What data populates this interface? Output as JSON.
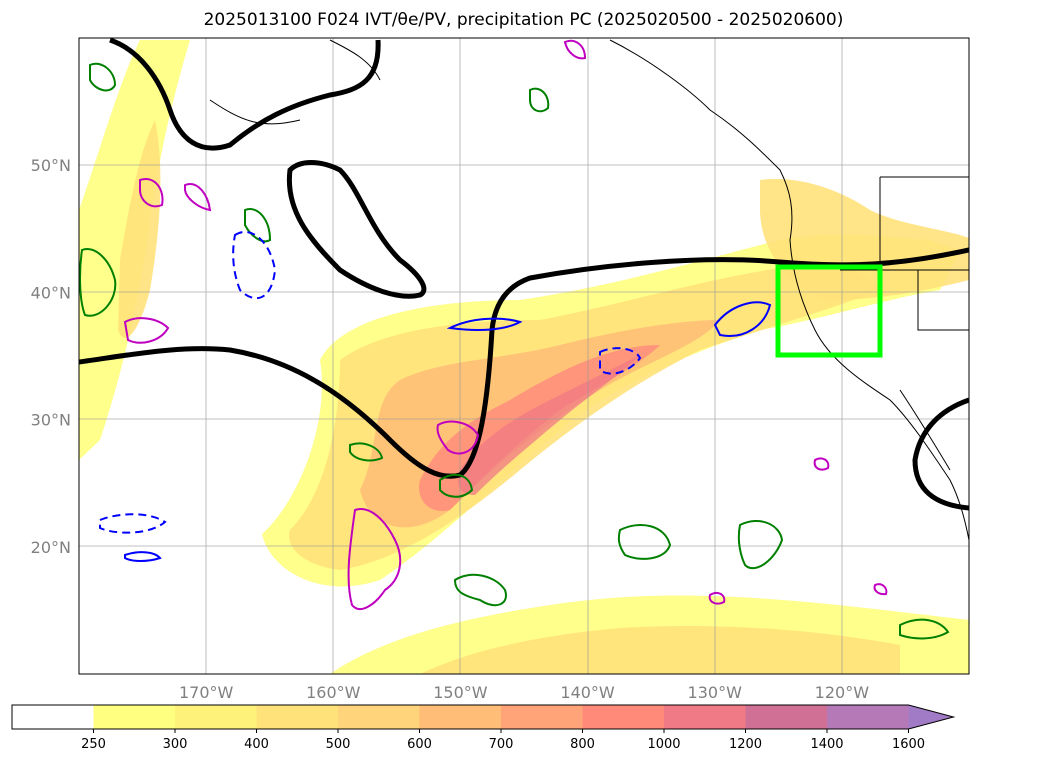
{
  "title": "2025013100 F024 IVT/θe/PV, precipitation PC (2025020500 - 2025020600)",
  "chart_data": {
    "type": "heatmap",
    "map_extent": {
      "lon_min": -180,
      "lon_max": -110,
      "lat_min": 10,
      "lat_max": 60
    },
    "lat_ticks": [
      {
        "value": 20,
        "label": "20°N"
      },
      {
        "value": 30,
        "label": "30°N"
      },
      {
        "value": 40,
        "label": "40°N"
      },
      {
        "value": 50,
        "label": "50°N"
      }
    ],
    "lon_ticks": [
      {
        "value": -170,
        "label": "170°W"
      },
      {
        "value": -160,
        "label": "160°W"
      },
      {
        "value": -150,
        "label": "150°W"
      },
      {
        "value": -140,
        "label": "140°W"
      },
      {
        "value": -130,
        "label": "130°W"
      },
      {
        "value": -120,
        "label": "120°W"
      }
    ],
    "grid": true,
    "colorbar": {
      "levels": [
        250,
        300,
        400,
        500,
        600,
        700,
        800,
        1000,
        1200,
        1400,
        1600
      ],
      "colors": [
        "#ffff80",
        "#fff27a",
        "#ffe27a",
        "#ffd47a",
        "#ffbd78",
        "#ffa478",
        "#ff8a7a",
        "#f07a85",
        "#d07095",
        "#b679b8",
        "#a27bc6"
      ],
      "extend": "max"
    },
    "box_region": {
      "lon_min": -124.8,
      "lon_max": -116.5,
      "lat_min": 35,
      "lat_max": 42,
      "color": "#00ff00"
    },
    "overlay_colors": {
      "theta_e": "#000000",
      "pv_positive": "#008000",
      "pv_negative": "#0000ff",
      "precip_pc": "#c000c0"
    }
  }
}
